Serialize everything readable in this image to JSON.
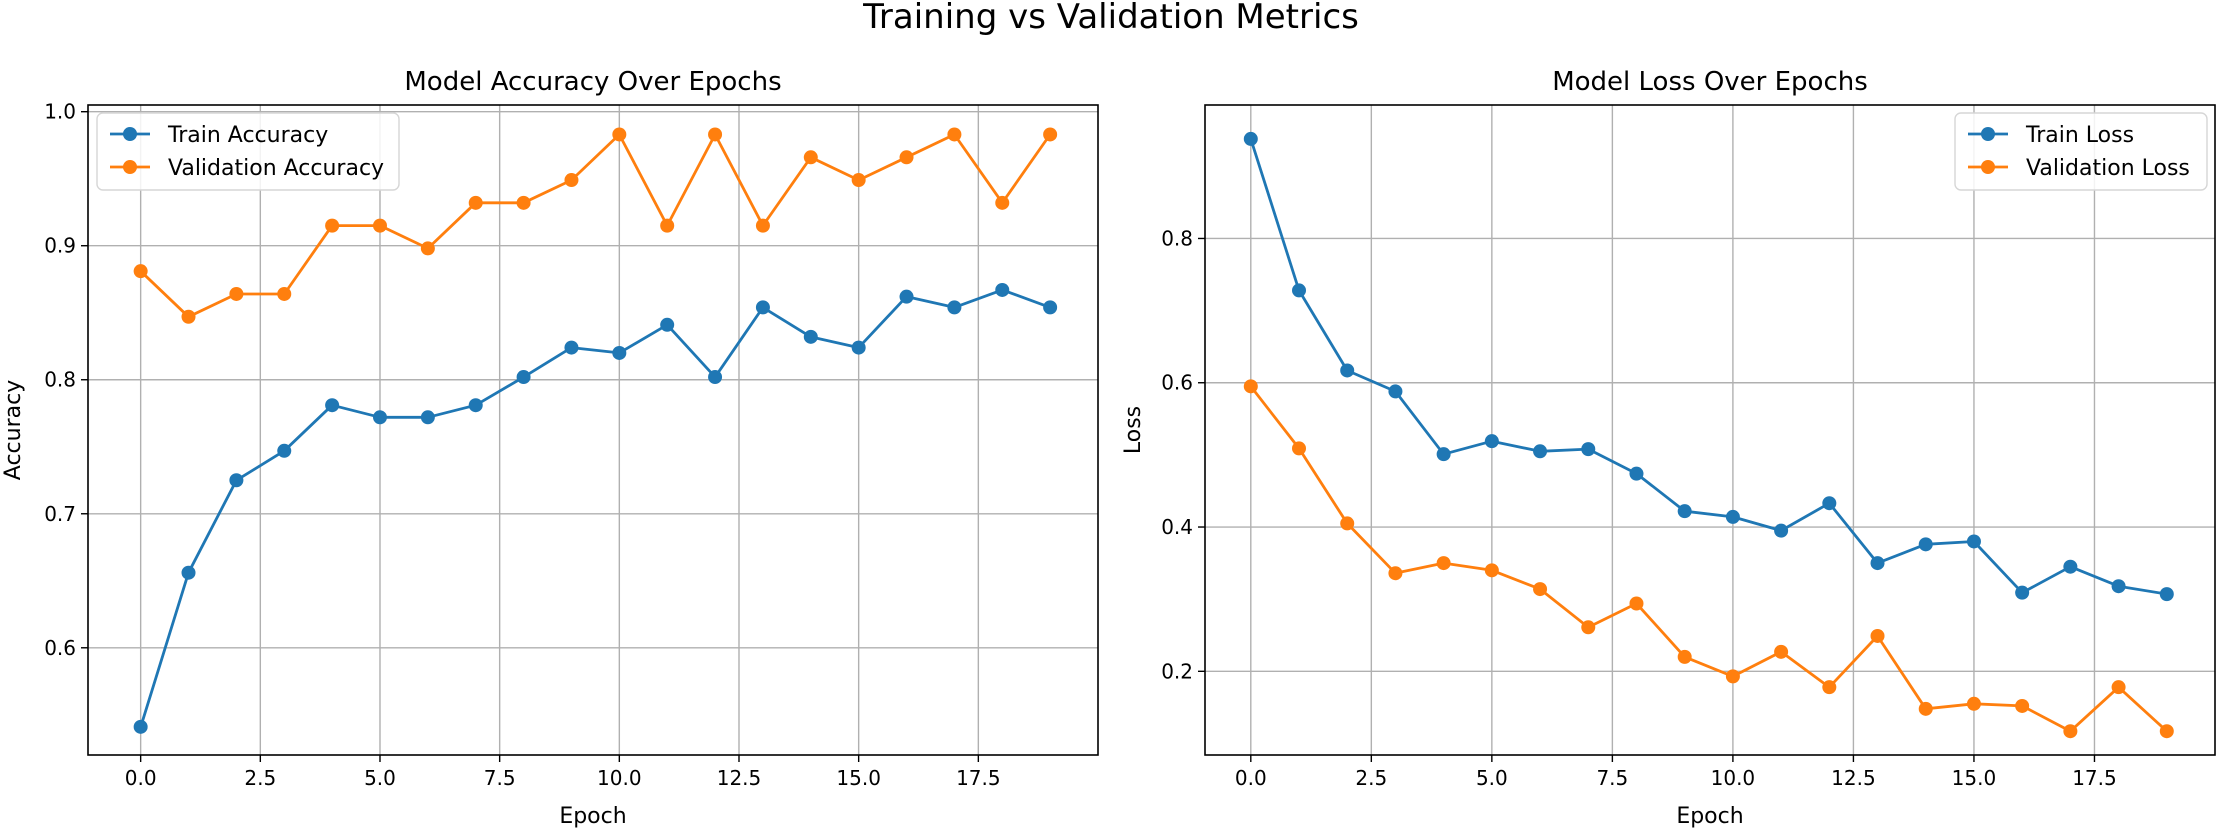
{
  "figure_title": "Training vs Validation Metrics",
  "chart_data": [
    {
      "type": "line",
      "title": "Model Accuracy Over Epochs",
      "xlabel": "Epoch",
      "ylabel": "Accuracy",
      "xlim": [
        -1.1,
        20.0
      ],
      "ylim": [
        0.52,
        1.005
      ],
      "xticks": [
        0.0,
        2.5,
        5.0,
        7.5,
        10.0,
        12.5,
        15.0,
        17.5
      ],
      "xtick_labels": [
        "0.0",
        "2.5",
        "5.0",
        "7.5",
        "10.0",
        "12.5",
        "15.0",
        "17.5"
      ],
      "yticks": [
        0.6,
        0.7,
        0.8,
        0.9,
        1.0
      ],
      "ytick_labels": [
        "0.6",
        "0.7",
        "0.8",
        "0.9",
        "1.0"
      ],
      "grid": true,
      "legend_position": "top-left",
      "x": [
        0,
        1,
        2,
        3,
        4,
        5,
        6,
        7,
        8,
        9,
        10,
        11,
        12,
        13,
        14,
        15,
        16,
        17,
        18,
        19
      ],
      "series": [
        {
          "name": "Train Accuracy",
          "color": "#1f77b4",
          "values": [
            0.541,
            0.656,
            0.725,
            0.747,
            0.781,
            0.772,
            0.772,
            0.781,
            0.802,
            0.824,
            0.82,
            0.841,
            0.802,
            0.854,
            0.832,
            0.824,
            0.862,
            0.854,
            0.867,
            0.854
          ]
        },
        {
          "name": "Validation Accuracy",
          "color": "#ff7f0e",
          "values": [
            0.881,
            0.847,
            0.864,
            0.864,
            0.915,
            0.915,
            0.898,
            0.932,
            0.932,
            0.949,
            0.983,
            0.915,
            0.983,
            0.915,
            0.966,
            0.949,
            0.966,
            0.983,
            0.932,
            0.983
          ]
        }
      ]
    },
    {
      "type": "line",
      "title": "Model Loss Over Epochs",
      "xlabel": "Epoch",
      "ylabel": "Loss",
      "xlim": [
        -0.95,
        20.0
      ],
      "ylim": [
        0.084,
        0.985
      ],
      "xticks": [
        0.0,
        2.5,
        5.0,
        7.5,
        10.0,
        12.5,
        15.0,
        17.5
      ],
      "xtick_labels": [
        "0.0",
        "2.5",
        "5.0",
        "7.5",
        "10.0",
        "12.5",
        "15.0",
        "17.5"
      ],
      "yticks": [
        0.2,
        0.4,
        0.6,
        0.8
      ],
      "ytick_labels": [
        "0.2",
        "0.4",
        "0.6",
        "0.8"
      ],
      "grid": true,
      "legend_position": "top-right",
      "x": [
        0,
        1,
        2,
        3,
        4,
        5,
        6,
        7,
        8,
        9,
        10,
        11,
        12,
        13,
        14,
        15,
        16,
        17,
        18,
        19
      ],
      "series": [
        {
          "name": "Train Loss",
          "color": "#1f77b4",
          "values": [
            0.938,
            0.728,
            0.617,
            0.588,
            0.501,
            0.519,
            0.505,
            0.508,
            0.474,
            0.422,
            0.414,
            0.395,
            0.433,
            0.35,
            0.376,
            0.38,
            0.309,
            0.345,
            0.318,
            0.307
          ]
        },
        {
          "name": "Validation Loss",
          "color": "#ff7f0e",
          "values": [
            0.595,
            0.509,
            0.405,
            0.336,
            0.35,
            0.34,
            0.314,
            0.261,
            0.294,
            0.22,
            0.193,
            0.227,
            0.178,
            0.249,
            0.148,
            0.155,
            0.152,
            0.117,
            0.178,
            0.117
          ]
        }
      ]
    }
  ]
}
